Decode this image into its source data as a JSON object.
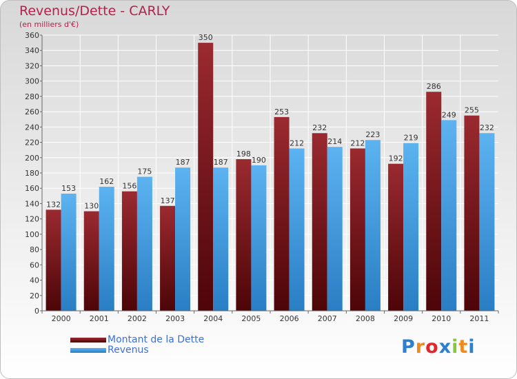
{
  "header": {
    "title": "Revenus/Dette - CARLY",
    "subtitle": "(en milliers d'€)"
  },
  "chart_data": {
    "type": "bar",
    "categories": [
      "2000",
      "2001",
      "2002",
      "2003",
      "2004",
      "2005",
      "2006",
      "2007",
      "2008",
      "2009",
      "2010",
      "2011"
    ],
    "series": [
      {
        "name": "Montant de la Dette",
        "color": "#7a1a1e",
        "values": [
          132,
          130,
          156,
          137,
          350,
          198,
          253,
          232,
          212,
          192,
          286,
          255
        ]
      },
      {
        "name": "Revenus",
        "color": "#4aa3e8",
        "values": [
          153,
          162,
          175,
          187,
          187,
          190,
          212,
          214,
          223,
          219,
          249,
          232
        ]
      }
    ],
    "ylim": [
      0,
      360
    ],
    "yticks": [
      0,
      20,
      40,
      60,
      80,
      100,
      120,
      140,
      160,
      180,
      200,
      220,
      240,
      260,
      280,
      300,
      320,
      340,
      360
    ],
    "grid": true,
    "legend_position": "bottom-left",
    "title": "Revenus/Dette - CARLY",
    "xlabel": "",
    "ylabel": "(en milliers d'€)"
  },
  "legend": {
    "items": [
      {
        "label": "Montant de la Dette",
        "color": "#7a1a1e"
      },
      {
        "label": "Revenus",
        "color": "#4aa3e8"
      }
    ]
  },
  "logo": {
    "letters": [
      "P",
      "r",
      "o",
      "x",
      "i",
      "t",
      "i"
    ],
    "colors": [
      "#2d7fd0",
      "#f08a1c",
      "#e3262b",
      "#2d7fd0",
      "#8ac53f",
      "#f08a1c",
      "#2d7fd0"
    ]
  }
}
